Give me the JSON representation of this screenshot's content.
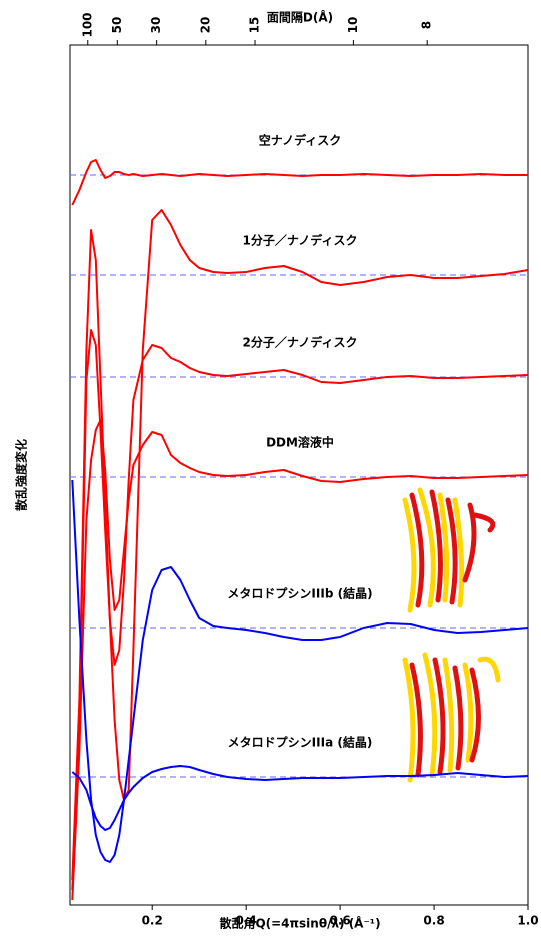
{
  "chart_data": {
    "type": "line",
    "top_axis": {
      "label": "面間隔D(Å)",
      "ticks": [
        100,
        50,
        30,
        20,
        15,
        10,
        8
      ]
    },
    "x_label": "散乱角Q(=4πsinθ/λ) (Å⁻¹)",
    "y_label": "散乱強度変化",
    "xlim": [
      0.025,
      1.0
    ],
    "xticks": [
      0.2,
      0.4,
      0.6,
      0.8,
      {
        "value": 1,
        "label": "1.0"
      }
    ],
    "ylim": [
      0,
      86
    ],
    "x": [
      0.03,
      0.045,
      0.06,
      0.07,
      0.08,
      0.09,
      0.1,
      0.11,
      0.12,
      0.13,
      0.14,
      0.15,
      0.16,
      0.18,
      0.2,
      0.22,
      0.24,
      0.26,
      0.28,
      0.3,
      0.33,
      0.36,
      0.4,
      0.44,
      0.48,
      0.52,
      0.56,
      0.6,
      0.65,
      0.7,
      0.75,
      0.8,
      0.85,
      0.9,
      0.95,
      1.0
    ],
    "series": [
      {
        "name": "空ナノディスク",
        "color": "#ff0000",
        "baseline": 73,
        "values": [
          70.0,
          71.5,
          73.3,
          74.3,
          74.5,
          73.5,
          72.7,
          72.9,
          73.3,
          73.3,
          73.1,
          73.0,
          73.1,
          72.9,
          73.0,
          73.1,
          73.0,
          72.9,
          73.0,
          73.1,
          73.0,
          72.9,
          73.0,
          73.1,
          73.0,
          72.9,
          73.0,
          73.0,
          73.1,
          73.0,
          72.9,
          73.0,
          73.0,
          73.1,
          73.0,
          73.0
        ]
      },
      {
        "name": "1分子／ナノディスク",
        "color": "#ff0000",
        "baseline": 63,
        "values": [
          2.5,
          20.5,
          55.5,
          67.5,
          64.5,
          52.5,
          40.5,
          28.5,
          18.5,
          12.5,
          10.5,
          11.5,
          25.5,
          55.5,
          68.5,
          69.5,
          68,
          66,
          64.5,
          63.7,
          63.3,
          63.2,
          63.3,
          63.7,
          63.9,
          63.3,
          62.3,
          62.0,
          62.3,
          62.8,
          63.0,
          62.7,
          62.7,
          62.9,
          63.1,
          63.5
        ]
      },
      {
        "name": "2分子／ナノディスク",
        "color": "#ff0000",
        "baseline": 52.8,
        "values": [
          1.5,
          18.5,
          52.5,
          57.5,
          56,
          47.5,
          37.5,
          28.5,
          24,
          25.5,
          32.5,
          42.5,
          50.5,
          54.5,
          56,
          55.7,
          54.7,
          54.3,
          53.7,
          53.3,
          53.0,
          52.9,
          53.1,
          53.3,
          53.5,
          53.0,
          52.3,
          52.2,
          52.5,
          52.8,
          52.9,
          52.7,
          52.7,
          52.8,
          52.9,
          53.0
        ]
      },
      {
        "name": "DDM溶液中",
        "color": "#ff0000",
        "baseline": 42.8,
        "values": [
          0.5,
          15.5,
          38.5,
          44.5,
          47.5,
          48.5,
          43.5,
          34.5,
          29.5,
          30.5,
          35.5,
          40.5,
          44,
          46,
          47.3,
          47,
          45,
          44.2,
          43.7,
          43.3,
          43.0,
          42.9,
          43.0,
          43.3,
          43.5,
          42.9,
          42.4,
          42.3,
          42.6,
          42.8,
          42.9,
          42.7,
          42.7,
          42.8,
          42.9,
          43.0
        ]
      },
      {
        "name": "メタロドプシンIIIb (結晶)",
        "color": "#0000ff",
        "baseline": 27.7,
        "values": [
          42.5,
          28.5,
          16.5,
          10.5,
          7.0,
          5.3,
          4.5,
          4.3,
          5.0,
          7.0,
          10.5,
          14.5,
          18.5,
          26.5,
          31.5,
          33.5,
          33.8,
          32.5,
          30.5,
          28.7,
          27.9,
          27.7,
          27.5,
          27.2,
          26.8,
          26.5,
          26.5,
          26.8,
          27.7,
          28.2,
          28.1,
          27.5,
          27.2,
          27.3,
          27.5,
          27.7
        ]
      },
      {
        "name": "メタロドプシンIIIa (結晶)",
        "color": "#0000ff",
        "baseline": 12.8,
        "values": [
          13.3,
          12.7,
          11.5,
          10,
          8.7,
          7.9,
          7.5,
          7.7,
          8.5,
          9.5,
          10.5,
          11.2,
          11.8,
          12.7,
          13.3,
          13.6,
          13.8,
          13.9,
          13.8,
          13.5,
          13.1,
          12.8,
          12.6,
          12.5,
          12.6,
          12.7,
          12.7,
          12.7,
          12.8,
          12.9,
          12.9,
          13.0,
          13.2,
          13.0,
          12.8,
          12.9
        ]
      }
    ]
  }
}
